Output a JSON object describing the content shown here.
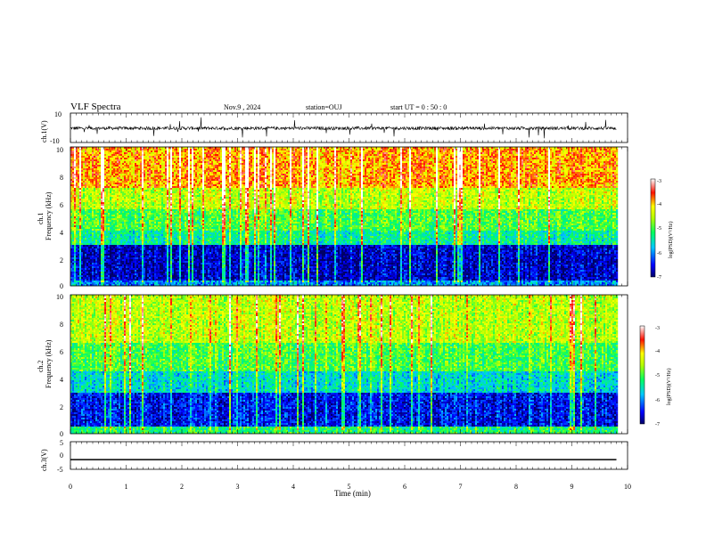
{
  "header": {
    "title": "VLF Spectra",
    "date": "Nov.9 , 2024",
    "station": "station=OUJ",
    "start": "start UT = 0 : 50 : 0"
  },
  "chart_data": [
    {
      "type": "line",
      "ylabel": "ch.1(V)",
      "yticks": [
        "10",
        "-10"
      ],
      "ylim": [
        -10,
        10
      ],
      "xlim": [
        0,
        9.8
      ],
      "description_values": "noisy waveform near 0 V with impulsive spikes",
      "color": "#000000"
    },
    {
      "type": "heatmap",
      "ylabel_lines": [
        "ch.1",
        "Frequency (kHz)"
      ],
      "yticks": [
        "0",
        "2",
        "4",
        "6",
        "8",
        "10"
      ],
      "ylim": [
        0,
        10
      ],
      "xlim": [
        0,
        9.8
      ],
      "colorbar": {
        "ticks": [
          "-3",
          "-4",
          "-5",
          "-6",
          "-7"
        ],
        "range": [
          -7,
          -3
        ],
        "label": "log(PSD)(V²/Hz)"
      },
      "bands": [
        {
          "from": 0,
          "to": 0.4,
          "level": -6.0
        },
        {
          "from": 0.4,
          "to": 2.9,
          "level": -6.7
        },
        {
          "from": 2.9,
          "to": 4.0,
          "level": -5.4
        },
        {
          "from": 4.0,
          "to": 5.5,
          "level": -5.0
        },
        {
          "from": 5.5,
          "to": 7.0,
          "level": -4.5
        },
        {
          "from": 7.0,
          "to": 10.0,
          "level": -3.9
        }
      ]
    },
    {
      "type": "heatmap",
      "ylabel_lines": [
        "ch.2",
        "Frequency (kHz)"
      ],
      "yticks": [
        "0",
        "2",
        "4",
        "6",
        "8",
        "10"
      ],
      "ylim": [
        0,
        10
      ],
      "xlim": [
        0,
        9.8
      ],
      "colorbar": {
        "ticks": [
          "-3",
          "-4",
          "-5",
          "-6",
          "-7"
        ],
        "range": [
          -7,
          -3
        ],
        "label": "log(PSD)(V²/Hz)"
      },
      "bands": [
        {
          "from": 0,
          "to": 0.5,
          "level": -5.2
        },
        {
          "from": 0.5,
          "to": 3.0,
          "level": -6.5
        },
        {
          "from": 3.0,
          "to": 4.5,
          "level": -5.6
        },
        {
          "from": 4.5,
          "to": 6.5,
          "level": -5.0
        },
        {
          "from": 6.5,
          "to": 10.0,
          "level": -4.5
        }
      ]
    },
    {
      "type": "line",
      "ylabel": "ch.3(V)",
      "yticks": [
        "5",
        "0",
        "-5"
      ],
      "ylim": [
        -5,
        5
      ],
      "xlim": [
        0,
        9.8
      ],
      "values_constant": -1.5,
      "color": "#000000"
    }
  ],
  "xaxis": {
    "label": "Time (min)",
    "ticks": [
      "0",
      "1",
      "2",
      "3",
      "4",
      "5",
      "6",
      "7",
      "8",
      "9",
      "10"
    ],
    "range": [
      0,
      10
    ]
  }
}
